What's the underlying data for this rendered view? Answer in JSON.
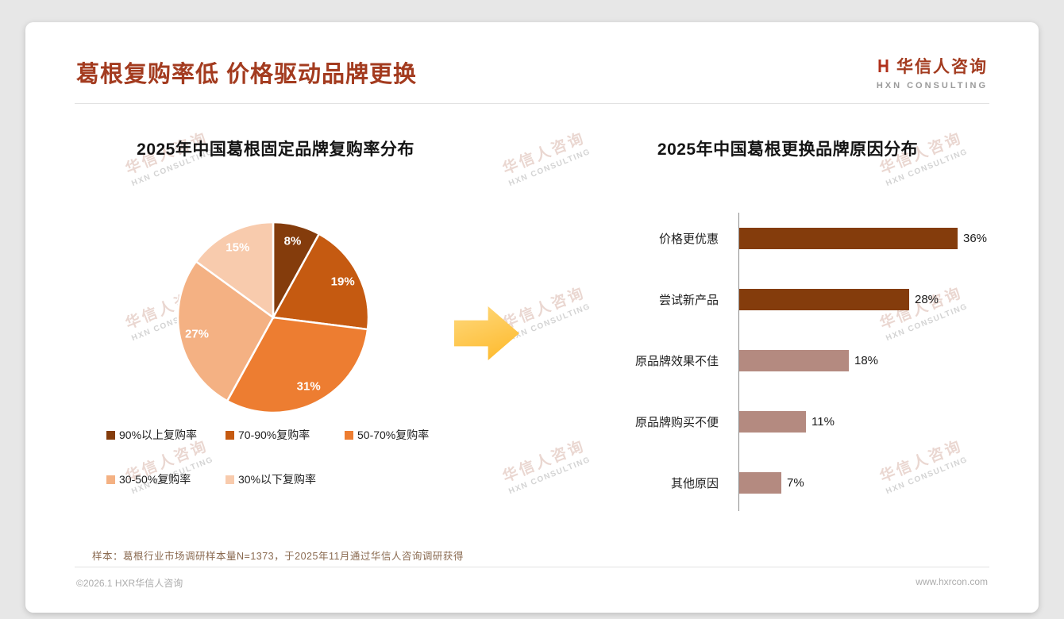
{
  "page": {
    "title": "葛根复购率低 价格驱动品牌更换",
    "logo": {
      "name": "华信人咨询",
      "tagline": "HXN CONSULTING"
    },
    "watermark": {
      "line1": "华信人咨询",
      "line2": "HXN CONSULTING"
    },
    "footnote": "样本：葛根行业市场调研样本量N=1373，于2025年11月通过华信人咨询调研获得",
    "footer": {
      "left": "©2026.1 HXR华信人咨询",
      "right": "www.hxrcon.com"
    },
    "colors": {
      "accent": "#A33B1F",
      "arrow_from": "#FFD97E",
      "arrow_to": "#FDB827",
      "bar_dark": "#843C0C",
      "bar_light": "#B48A80"
    }
  },
  "chart_data": [
    {
      "type": "pie",
      "title": "2025年中国葛根固定品牌复购率分布",
      "labels": [
        "90%以上复购率",
        "70-90%复购率",
        "50-70%复购率",
        "30-50%复购率",
        "30%以下复购率"
      ],
      "values": [
        8,
        19,
        31,
        27,
        15
      ],
      "value_suffix": "%",
      "colors": [
        "#843C0C",
        "#C55A11",
        "#ED7D31",
        "#F4B183",
        "#F8CBAD"
      ],
      "start_angle_deg": 0,
      "direction": "clockwise",
      "legend_position": "bottom"
    },
    {
      "type": "bar",
      "orientation": "horizontal",
      "title": "2025年中国葛根更换品牌原因分布",
      "categories": [
        "价格更优惠",
        "尝试新产品",
        "原品牌效果不佳",
        "原品牌购买不便",
        "其他原因"
      ],
      "values": [
        36,
        28,
        18,
        11,
        7
      ],
      "value_suffix": "%",
      "colors": [
        "#843C0C",
        "#843C0C",
        "#B48A80",
        "#B48A80",
        "#B48A80"
      ],
      "xlim": [
        0,
        36
      ],
      "grid": false,
      "legend_position": "none"
    }
  ]
}
